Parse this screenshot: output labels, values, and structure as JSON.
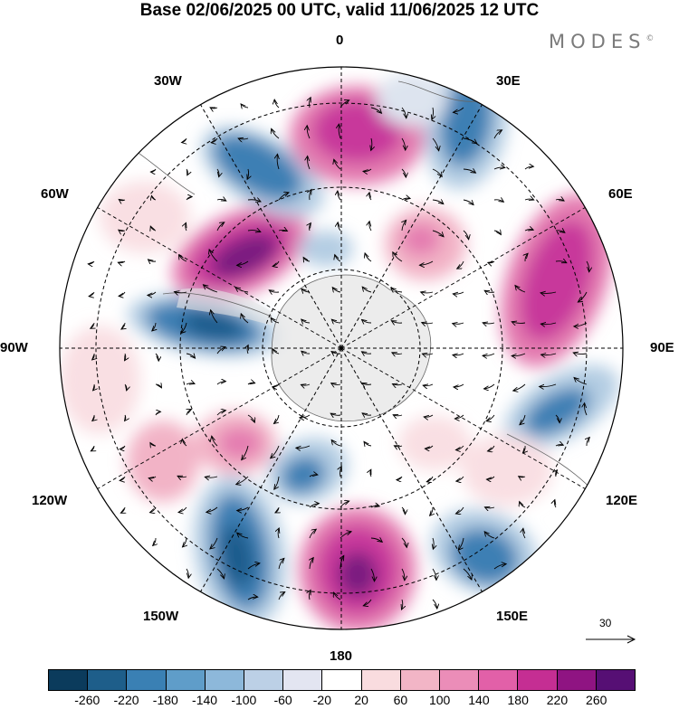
{
  "title": "Base 02/06/2025 00 UTC, valid 11/06/2025 12 UTC",
  "brand": {
    "text": "MODES",
    "mark": "©"
  },
  "longitude_labels": {
    "n0": "0",
    "n30e": "30E",
    "n60e": "60E",
    "n90e": "90E",
    "n120e": "120E",
    "n150e": "150E",
    "n180": "180",
    "n150w": "150W",
    "n120w": "120W",
    "n90w": "90W",
    "n60w": "60W",
    "n30w": "30W"
  },
  "vector_reference": {
    "label": "30",
    "icon": "arrow-right-icon"
  },
  "map": {
    "projection": "south-polar-stereographic",
    "field": "anomaly",
    "overlays": [
      "wind-vectors",
      "coastlines",
      "graticule-dashed"
    ],
    "palette": {
      "blue_strong": "#1d5b8c",
      "blue": "#3d7fb4",
      "blue_mid": "#6ea7cf",
      "blue_light": "#b4cde3",
      "blue_pale": "#dde4ef",
      "pink_pale": "#f9dfe3",
      "pink_light": "#f2b3c6",
      "pink": "#e47bb0",
      "magenta": "#c8389b",
      "purple": "#7a1c80",
      "land_grey": "#e6e6e6"
    }
  },
  "colorbar": {
    "colors": [
      "#0b3b5c",
      "#1e5e8a",
      "#3a80b4",
      "#5f9dc9",
      "#8db8da",
      "#bcd0e6",
      "#e3e5f1",
      "#ffffff",
      "#f9dcdf",
      "#f2b5c6",
      "#eb8db8",
      "#e260a8",
      "#c52e93",
      "#8f1482",
      "#560f74"
    ],
    "ticks": [
      "-260",
      "-220",
      "-180",
      "-140",
      "-100",
      "-60",
      "-20",
      "20",
      "60",
      "100",
      "140",
      "180",
      "220",
      "260"
    ]
  }
}
